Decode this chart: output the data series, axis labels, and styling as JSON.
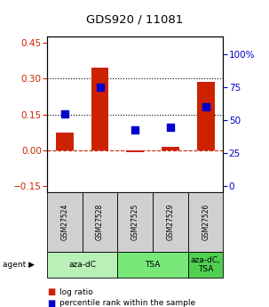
{
  "title": "GDS920 / 11081",
  "samples": [
    "GSM27524",
    "GSM27528",
    "GSM27525",
    "GSM27529",
    "GSM27526"
  ],
  "log_ratios": [
    0.072,
    0.345,
    -0.008,
    0.015,
    0.285
  ],
  "percentile_ranks": [
    55,
    75,
    43,
    45,
    60
  ],
  "agents": [
    {
      "label": "aza-dC",
      "start": 0,
      "end": 2,
      "color": "#b8f0b8"
    },
    {
      "label": "TSA",
      "start": 2,
      "end": 4,
      "color": "#78e878"
    },
    {
      "label": "aza-dC,\nTSA",
      "start": 4,
      "end": 5,
      "color": "#50d050"
    }
  ],
  "ylim_left": [
    -0.175,
    0.475
  ],
  "ylim_right": [
    -4.17,
    113.1
  ],
  "yticks_left": [
    -0.15,
    0.0,
    0.15,
    0.3,
    0.45
  ],
  "yticks_right": [
    0,
    25,
    50,
    75,
    100
  ],
  "bar_color": "#cc2200",
  "scatter_color": "#0000cc",
  "bar_width": 0.5,
  "scatter_size": 40,
  "legend_bar_label": "log ratio",
  "legend_scatter_label": "percentile rank within the sample",
  "agent_label": "agent ▶",
  "background_color": "#ffffff",
  "plot_bg": "#ffffff",
  "dashed_zero_color": "#cc2200",
  "dotted_line_color": "#000000",
  "sample_box_color": "#d0d0d0"
}
